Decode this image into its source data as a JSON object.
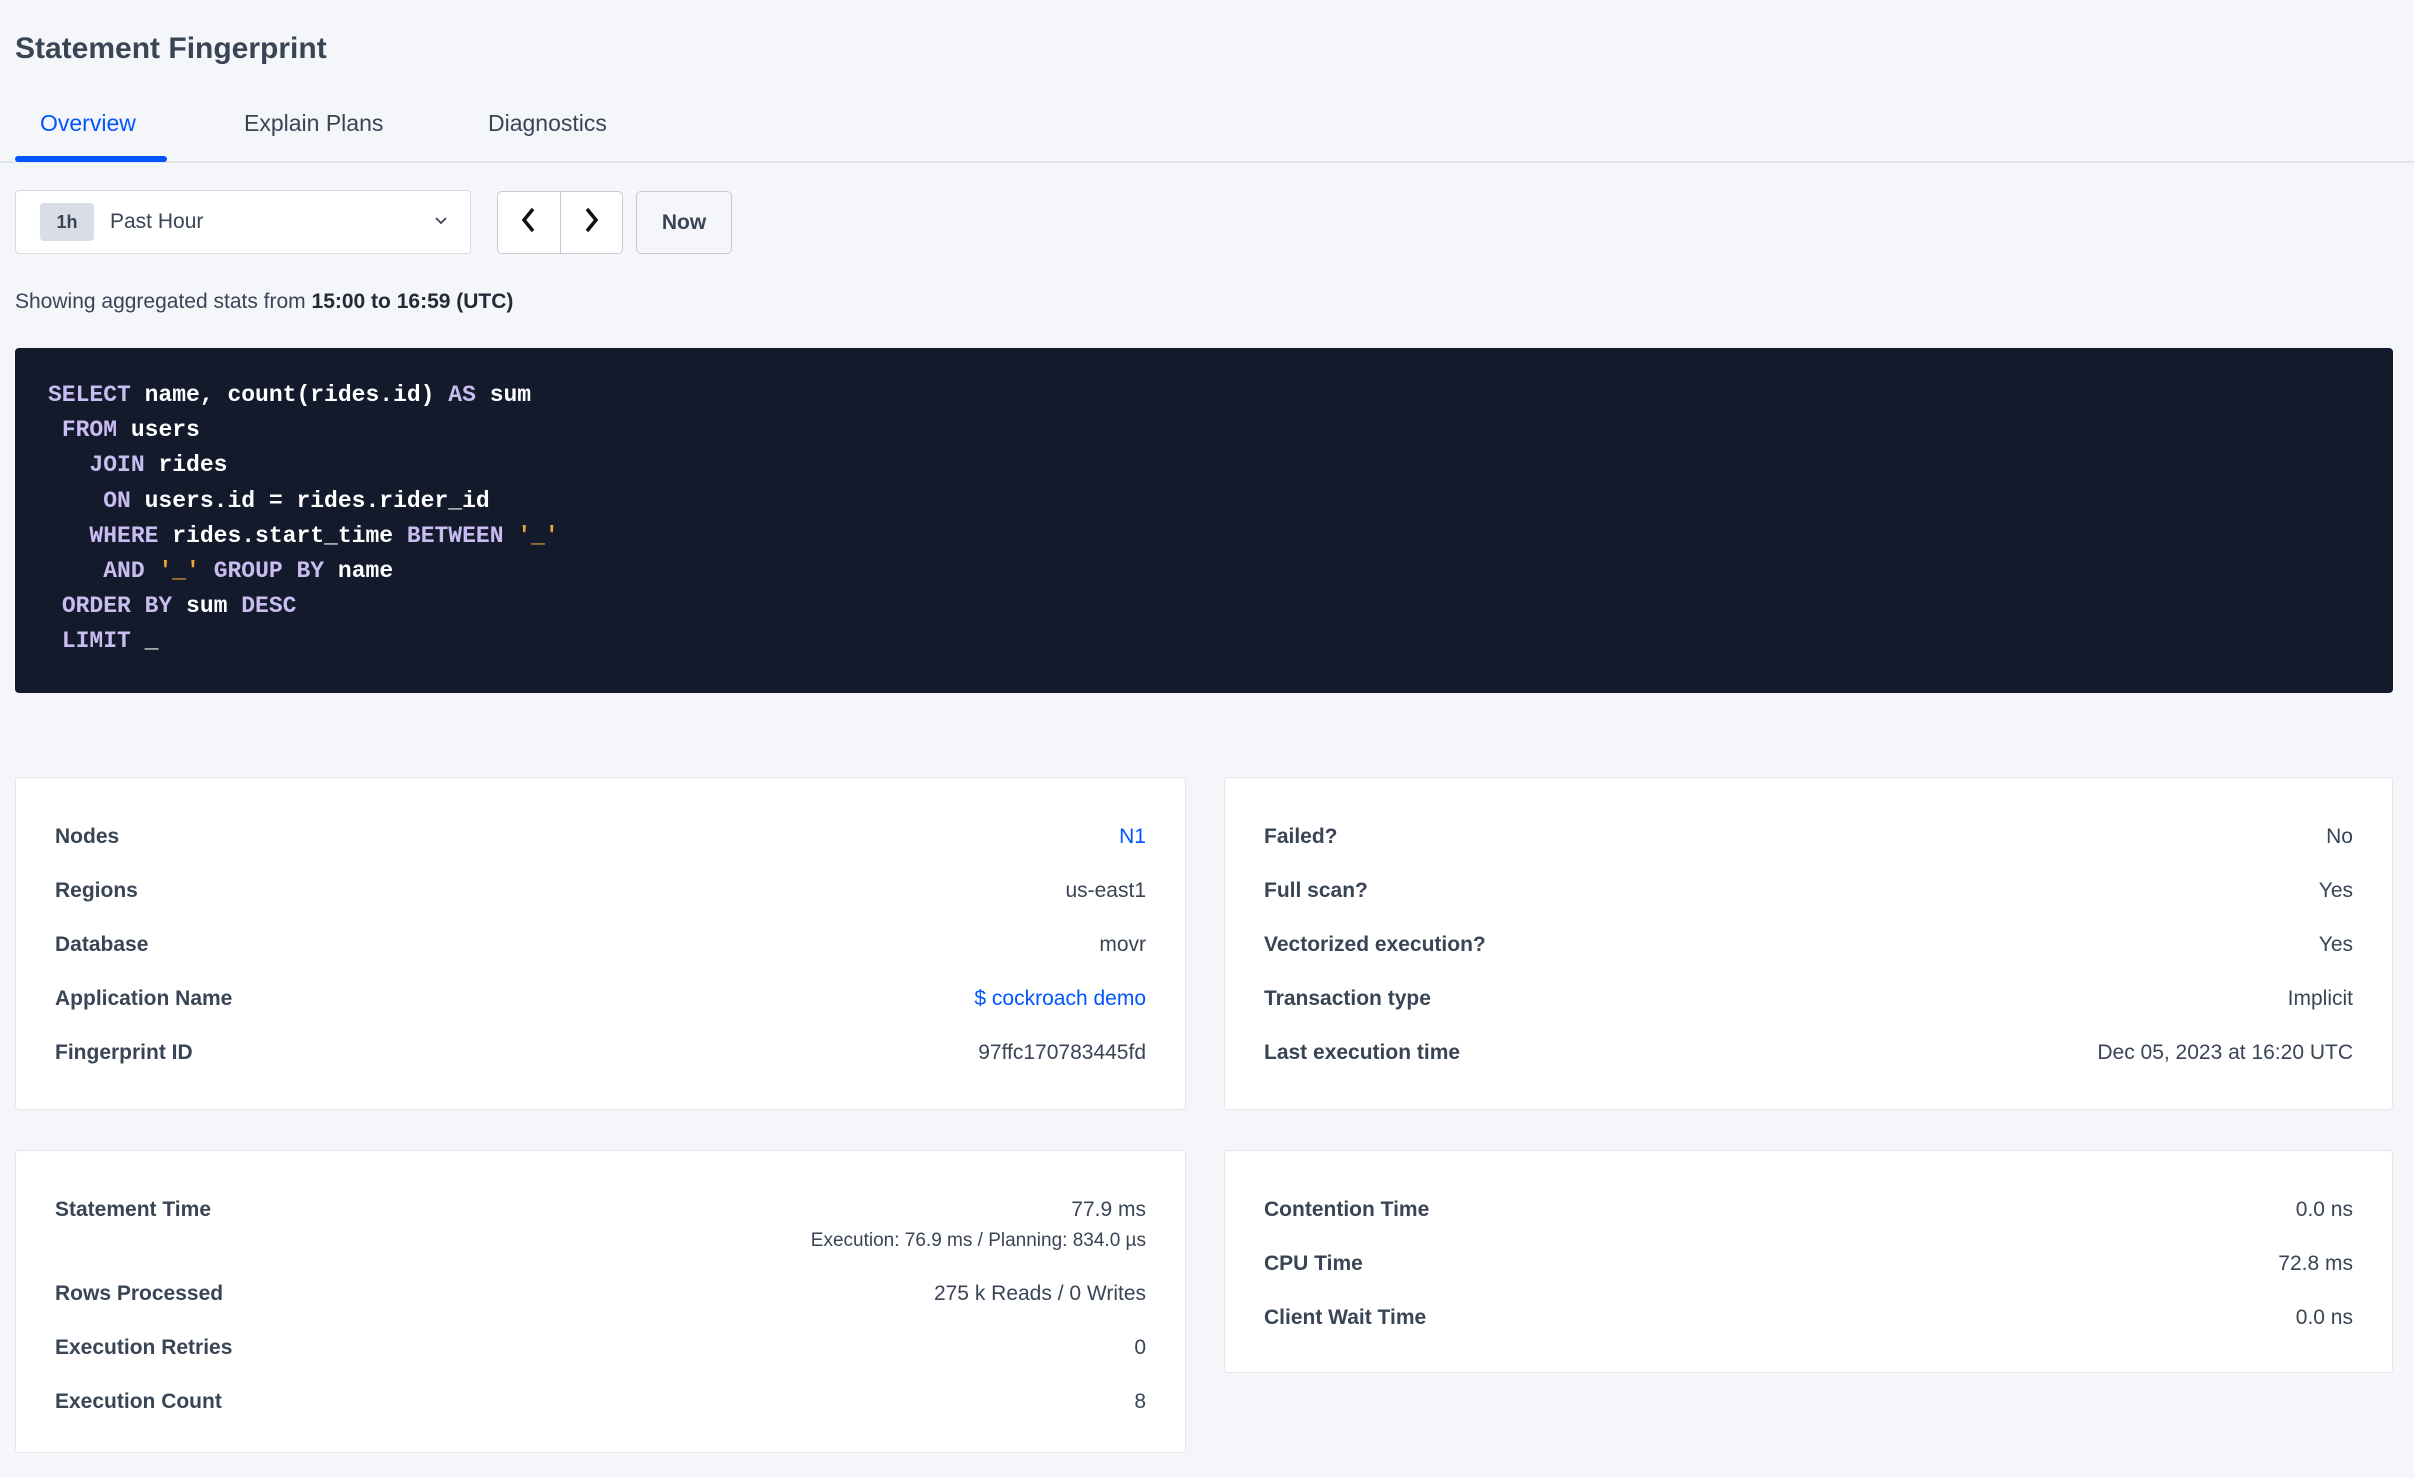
{
  "page": {
    "title": "Statement Fingerprint"
  },
  "tabs": [
    {
      "label": "Overview",
      "active": true
    },
    {
      "label": "Explain Plans",
      "active": false
    },
    {
      "label": "Diagnostics",
      "active": false
    }
  ],
  "time_picker": {
    "badge": "1h",
    "selected": "Past Hour",
    "now_label": "Now"
  },
  "stats_line": {
    "prefix": "Showing aggregated stats from ",
    "range": "15:00 to 16:59 (UTC)"
  },
  "colors": {
    "accent": "#0055ff",
    "code_bg": "#131a2c",
    "keyword": "#c9bcf0",
    "string": "#f2a33a"
  },
  "sql": [
    [
      {
        "t": "SELECT",
        "c": "kw"
      },
      {
        "t": " name, count(rides.id) "
      },
      {
        "t": "AS",
        "c": "kw"
      },
      {
        "t": " sum"
      }
    ],
    [
      {
        "t": " "
      },
      {
        "t": "FROM",
        "c": "kw"
      },
      {
        "t": " users"
      }
    ],
    [
      {
        "t": "   "
      },
      {
        "t": "JOIN",
        "c": "kw"
      },
      {
        "t": " rides"
      }
    ],
    [
      {
        "t": "    "
      },
      {
        "t": "ON",
        "c": "kw"
      },
      {
        "t": " users.id = rides.rider_id"
      }
    ],
    [
      {
        "t": "   "
      },
      {
        "t": "WHERE",
        "c": "kw"
      },
      {
        "t": " rides.start_time "
      },
      {
        "t": "BETWEEN",
        "c": "kw"
      },
      {
        "t": " "
      },
      {
        "t": "'_'",
        "c": "str"
      }
    ],
    [
      {
        "t": "    "
      },
      {
        "t": "AND",
        "c": "kw"
      },
      {
        "t": " "
      },
      {
        "t": "'_'",
        "c": "str"
      },
      {
        "t": " "
      },
      {
        "t": "GROUP BY",
        "c": "kw"
      },
      {
        "t": " name"
      }
    ],
    [
      {
        "t": " "
      },
      {
        "t": "ORDER BY",
        "c": "kw"
      },
      {
        "t": " sum "
      },
      {
        "t": "DESC",
        "c": "kw"
      }
    ],
    [
      {
        "t": " "
      },
      {
        "t": "LIMIT",
        "c": "kw"
      },
      {
        "t": " _"
      }
    ]
  ],
  "summary_left": [
    {
      "label": "Nodes",
      "value": "N1",
      "link": true
    },
    {
      "label": "Regions",
      "value": "us-east1"
    },
    {
      "label": "Database",
      "value": "movr"
    },
    {
      "label": "Application Name",
      "value": "$ cockroach demo",
      "link": true
    },
    {
      "label": "Fingerprint ID",
      "value": "97ffc170783445fd"
    }
  ],
  "summary_right": [
    {
      "label": "Failed?",
      "value": "No"
    },
    {
      "label": "Full scan?",
      "value": "Yes"
    },
    {
      "label": "Vectorized execution?",
      "value": "Yes"
    },
    {
      "label": "Transaction type",
      "value": "Implicit"
    },
    {
      "label": "Last execution time",
      "value": "Dec 05, 2023 at 16:20 UTC"
    }
  ],
  "metrics_left": {
    "statement_time": {
      "label": "Statement Time",
      "value": "77.9 ms",
      "detail": "Execution: 76.9 ms / Planning: 834.0 µs"
    },
    "rows": [
      {
        "label": "Rows Processed",
        "value": "275 k Reads / 0 Writes"
      },
      {
        "label": "Execution Retries",
        "value": "0"
      },
      {
        "label": "Execution Count",
        "value": "8"
      }
    ]
  },
  "metrics_right": [
    {
      "label": "Contention Time",
      "value": "0.0 ns"
    },
    {
      "label": "CPU Time",
      "value": "72.8 ms"
    },
    {
      "label": "Client Wait Time",
      "value": "0.0 ns"
    }
  ]
}
